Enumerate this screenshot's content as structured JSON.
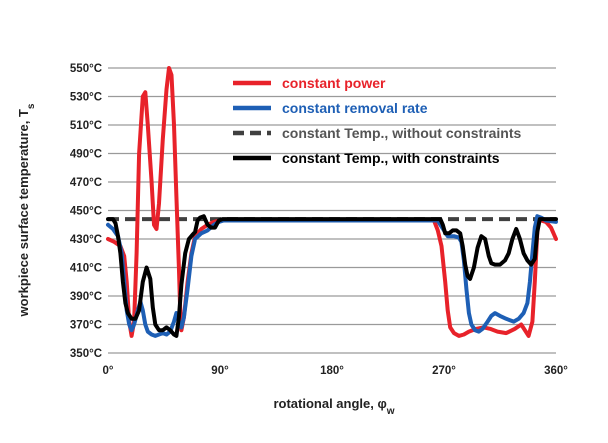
{
  "chart_data": {
    "type": "line",
    "xlabel": "rotational angle, φ",
    "xlabel_sub": "w",
    "ylabel": "workpiece surface temperature, T",
    "ylabel_sub": "s",
    "xlim": [
      0,
      360
    ],
    "ylim": [
      350,
      550
    ],
    "x_ticks": [
      0,
      90,
      180,
      270,
      360
    ],
    "x_tick_labels": [
      "0°",
      "90°",
      "180°",
      "270°",
      "360°"
    ],
    "y_ticks": [
      350,
      370,
      390,
      410,
      430,
      450,
      470,
      490,
      510,
      530,
      550
    ],
    "y_tick_labels": [
      "350°C",
      "370°C",
      "390°C",
      "410°C",
      "430°C",
      "450°C",
      "470°C",
      "490°C",
      "510°C",
      "530°C",
      "550°C"
    ],
    "grid": "horizontal",
    "legend_position": "top-right",
    "series": [
      {
        "name": "constant power",
        "color": "#e8222a",
        "style": "solid",
        "points": [
          [
            0,
            430
          ],
          [
            5,
            428
          ],
          [
            10,
            425
          ],
          [
            13,
            418
          ],
          [
            15,
            400
          ],
          [
            17,
            372
          ],
          [
            19,
            362
          ],
          [
            21,
            372
          ],
          [
            23,
            420
          ],
          [
            25,
            490
          ],
          [
            28,
            530
          ],
          [
            30,
            533
          ],
          [
            32,
            510
          ],
          [
            35,
            470
          ],
          [
            37,
            440
          ],
          [
            39,
            437
          ],
          [
            41,
            455
          ],
          [
            44,
            500
          ],
          [
            47,
            535
          ],
          [
            49,
            550
          ],
          [
            51,
            545
          ],
          [
            53,
            510
          ],
          [
            55,
            460
          ],
          [
            57,
            410
          ],
          [
            58,
            380
          ],
          [
            59,
            366
          ],
          [
            61,
            375
          ],
          [
            64,
            400
          ],
          [
            67,
            420
          ],
          [
            70,
            432
          ],
          [
            75,
            437
          ],
          [
            80,
            440
          ],
          [
            85,
            442
          ],
          [
            90,
            443
          ],
          [
            180,
            443
          ],
          [
            262,
            443
          ],
          [
            265,
            436
          ],
          [
            268,
            425
          ],
          [
            271,
            400
          ],
          [
            273,
            380
          ],
          [
            275,
            368
          ],
          [
            278,
            364
          ],
          [
            282,
            362
          ],
          [
            286,
            363
          ],
          [
            290,
            365
          ],
          [
            296,
            367
          ],
          [
            302,
            368
          ],
          [
            307,
            367
          ],
          [
            313,
            365
          ],
          [
            320,
            364
          ],
          [
            327,
            367
          ],
          [
            332,
            370
          ],
          [
            335,
            366
          ],
          [
            338,
            362
          ],
          [
            341,
            372
          ],
          [
            343,
            400
          ],
          [
            345,
            435
          ],
          [
            346,
            445
          ],
          [
            348,
            443
          ],
          [
            352,
            442
          ],
          [
            356,
            438
          ],
          [
            360,
            430
          ]
        ]
      },
      {
        "name": "constant removal rate",
        "color": "#1e5fb5",
        "style": "solid",
        "points": [
          [
            0,
            440
          ],
          [
            4,
            437
          ],
          [
            8,
            432
          ],
          [
            11,
            420
          ],
          [
            13,
            400
          ],
          [
            15,
            380
          ],
          [
            17,
            370
          ],
          [
            19,
            366
          ],
          [
            21,
            370
          ],
          [
            24,
            380
          ],
          [
            26,
            386
          ],
          [
            28,
            380
          ],
          [
            30,
            370
          ],
          [
            32,
            365
          ],
          [
            35,
            363
          ],
          [
            38,
            362
          ],
          [
            41,
            363
          ],
          [
            44,
            364
          ],
          [
            47,
            363
          ],
          [
            50,
            365
          ],
          [
            53,
            372
          ],
          [
            55,
            378
          ],
          [
            57,
            372
          ],
          [
            59,
            368
          ],
          [
            61,
            375
          ],
          [
            64,
            395
          ],
          [
            67,
            418
          ],
          [
            70,
            430
          ],
          [
            75,
            434
          ],
          [
            80,
            436
          ],
          [
            85,
            440
          ],
          [
            89,
            442
          ],
          [
            93,
            443
          ],
          [
            180,
            443
          ],
          [
            265,
            443
          ],
          [
            267,
            440
          ],
          [
            270,
            436
          ],
          [
            273,
            432
          ],
          [
            278,
            432
          ],
          [
            282,
            431
          ],
          [
            284,
            428
          ],
          [
            286,
            415
          ],
          [
            288,
            395
          ],
          [
            290,
            378
          ],
          [
            292,
            370
          ],
          [
            295,
            366
          ],
          [
            298,
            365
          ],
          [
            301,
            367
          ],
          [
            305,
            372
          ],
          [
            308,
            376
          ],
          [
            311,
            378
          ],
          [
            315,
            376
          ],
          [
            320,
            374
          ],
          [
            326,
            372
          ],
          [
            330,
            374
          ],
          [
            334,
            378
          ],
          [
            337,
            385
          ],
          [
            339,
            400
          ],
          [
            341,
            420
          ],
          [
            343,
            438
          ],
          [
            345,
            446
          ],
          [
            348,
            445
          ],
          [
            352,
            443
          ],
          [
            360,
            442
          ]
        ]
      },
      {
        "name": "constant Temp., without constraints",
        "color": "#404040",
        "style": "dashed",
        "points": [
          [
            0,
            444
          ],
          [
            360,
            444
          ]
        ]
      },
      {
        "name": "constant Temp., with constraints",
        "color": "#000000",
        "style": "solid",
        "points": [
          [
            0,
            444
          ],
          [
            4,
            444
          ],
          [
            6,
            441
          ],
          [
            8,
            432
          ],
          [
            10,
            420
          ],
          [
            12,
            400
          ],
          [
            14,
            385
          ],
          [
            16,
            378
          ],
          [
            19,
            374
          ],
          [
            22,
            374
          ],
          [
            25,
            380
          ],
          [
            28,
            400
          ],
          [
            31,
            410
          ],
          [
            34,
            402
          ],
          [
            36,
            382
          ],
          [
            38,
            370
          ],
          [
            41,
            366
          ],
          [
            44,
            366
          ],
          [
            47,
            368
          ],
          [
            50,
            366
          ],
          [
            53,
            363
          ],
          [
            55,
            362
          ],
          [
            57,
            375
          ],
          [
            59,
            398
          ],
          [
            62,
            420
          ],
          [
            65,
            430
          ],
          [
            68,
            433
          ],
          [
            70,
            435
          ],
          [
            72,
            443
          ],
          [
            74,
            445
          ],
          [
            77,
            446
          ],
          [
            80,
            440
          ],
          [
            83,
            438
          ],
          [
            86,
            438
          ],
          [
            89,
            443
          ],
          [
            92,
            444
          ],
          [
            180,
            444
          ],
          [
            265,
            444
          ],
          [
            267,
            444
          ],
          [
            269,
            440
          ],
          [
            271,
            434
          ],
          [
            274,
            434
          ],
          [
            277,
            436
          ],
          [
            280,
            436
          ],
          [
            283,
            434
          ],
          [
            285,
            425
          ],
          [
            287,
            412
          ],
          [
            289,
            404
          ],
          [
            291,
            402
          ],
          [
            294,
            410
          ],
          [
            297,
            424
          ],
          [
            300,
            432
          ],
          [
            303,
            430
          ],
          [
            306,
            418
          ],
          [
            308,
            413
          ],
          [
            311,
            412
          ],
          [
            315,
            412
          ],
          [
            319,
            415
          ],
          [
            322,
            420
          ],
          [
            325,
            430
          ],
          [
            328,
            437
          ],
          [
            331,
            430
          ],
          [
            334,
            420
          ],
          [
            337,
            415
          ],
          [
            340,
            412
          ],
          [
            343,
            416
          ],
          [
            345,
            435
          ],
          [
            347,
            444
          ],
          [
            352,
            444
          ],
          [
            360,
            444
          ]
        ]
      }
    ]
  }
}
